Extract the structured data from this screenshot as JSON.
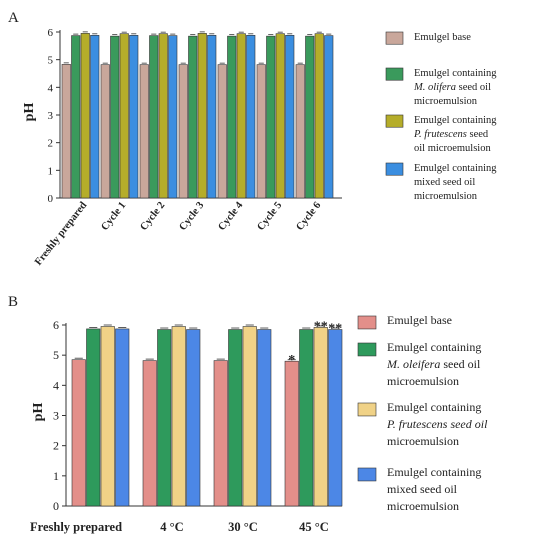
{
  "chart_data": [
    {
      "type": "bar",
      "panel_label": "A",
      "ylabel": "pH",
      "ylim": [
        0,
        6
      ],
      "yticks": [
        0,
        1,
        2,
        3,
        4,
        5,
        6
      ],
      "categories": [
        "Freshly prepared",
        "Cycle 1",
        "Cycle 2",
        "Cycle 3",
        "Cycle 4",
        "Cycle 5",
        "Cycle 6"
      ],
      "series": [
        {
          "name": "Emulgel base",
          "color": "#c9a79b",
          "values": [
            4.83,
            4.82,
            4.82,
            4.82,
            4.82,
            4.82,
            4.82
          ]
        },
        {
          "name": "Emulgel containing M. olifera seed oil microemulsion",
          "color": "#3a9a5c",
          "values": [
            5.87,
            5.85,
            5.87,
            5.85,
            5.85,
            5.85,
            5.85
          ]
        },
        {
          "name": "Emulgel containing P. frutescens seed oil microemulsion",
          "color": "#b5ad2a",
          "values": [
            5.95,
            5.94,
            5.94,
            5.95,
            5.94,
            5.94,
            5.94
          ]
        },
        {
          "name": "Emulgel containing mixed seed oil microemulsion",
          "color": "#3b8ee0",
          "values": [
            5.88,
            5.88,
            5.87,
            5.88,
            5.88,
            5.88,
            5.87
          ]
        }
      ],
      "legend": {
        "position": "right",
        "entries": [
          [
            "Emulgel base"
          ],
          [
            "Emulgel containing",
            "M. olifera seed oil",
            "microemulsion"
          ],
          [
            "Emulgel containing",
            "P. frutescens seed",
            "oil microemulsion"
          ],
          [
            "Emulgel containing",
            "mixed seed oil",
            "microemulsion"
          ]
        ]
      }
    },
    {
      "type": "bar",
      "panel_label": "B",
      "ylabel": "pH",
      "ylim": [
        0,
        6
      ],
      "yticks": [
        0,
        1,
        2,
        3,
        4,
        5,
        6
      ],
      "categories": [
        "Freshly prepared",
        "4 °C",
        "30 °C",
        "45 °C"
      ],
      "series": [
        {
          "name": "Emulgel base",
          "color": "#e38f8a",
          "values": [
            4.85,
            4.82,
            4.82,
            4.8
          ]
        },
        {
          "name": "Emulgel containing M. oleifera seed oil microemulsion",
          "color": "#2e9a5c",
          "values": [
            5.87,
            5.85,
            5.85,
            5.85
          ]
        },
        {
          "name": "Emulgel containing P. frutescens seed oil microemulsion",
          "color": "#f0d287",
          "values": [
            5.95,
            5.95,
            5.95,
            5.92
          ]
        },
        {
          "name": "Emulgel containing mixed seed oil microemulsion",
          "color": "#4c87e6",
          "values": [
            5.87,
            5.85,
            5.85,
            5.85
          ]
        }
      ],
      "annotations": [
        {
          "category": "45 °C",
          "series": 0,
          "text": "*"
        },
        {
          "category": "45 °C",
          "series": 2,
          "text": "**"
        },
        {
          "category": "45 °C",
          "series": 3,
          "text": "**"
        }
      ],
      "legend": {
        "position": "right",
        "entries": [
          [
            "Emulgel base"
          ],
          [
            "Emulgel containing",
            "M. oleifera seed oil",
            "microemulsion"
          ],
          [
            "Emulgel containing",
            "P. frutescens seed oil",
            "microemulsion"
          ],
          [
            "Emulgel containing",
            "mixed seed oil",
            "microemulsion"
          ]
        ]
      }
    }
  ]
}
